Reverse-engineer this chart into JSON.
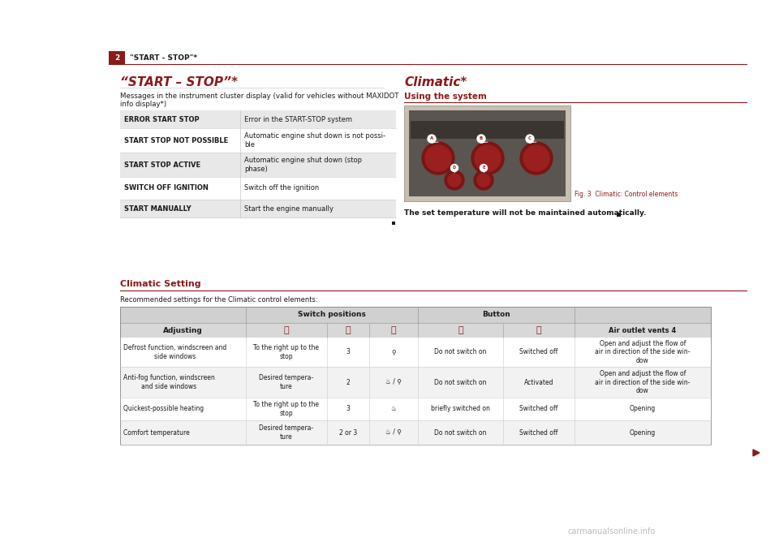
{
  "page_bg": "#ffffff",
  "header_bar_color": "#8B1A1A",
  "header_num": "2",
  "header_label": "\"START - STOP\"*",
  "left_section_title": "“START – STOP”*",
  "left_section_subtitle": "Messages in the instrument cluster display (valid for vehicles without MAXIDOT\ninfo display*)",
  "left_table_rows": [
    {
      "label": "ERROR START STOP",
      "desc": "Error in the START-STOP system"
    },
    {
      "label": "START STOP NOT POSSIBLE",
      "desc": "Automatic engine shut down is not possi-\nble"
    },
    {
      "label": "START STOP ACTIVE",
      "desc": "Automatic engine shut down (stop\nphase)"
    },
    {
      "label": "SWITCH OFF IGNITION",
      "desc": "Switch off the ignition"
    },
    {
      "label": "START MANUALLY",
      "desc": "Start the engine manually"
    }
  ],
  "right_section_title": "Climatic*",
  "right_subsection_title": "Using the system",
  "right_text": "The set temperature will not be maintained automatically.",
  "fig_caption": "Fig. 3  Climatic: Control elements",
  "fig_caption_color": "#8B1A1A",
  "bottom_section_title": "Climatic Setting",
  "bottom_section_subtitle": "Recommended settings for the Climatic control elements:",
  "table_rows": [
    [
      "Defrost function, windscreen and\nside windows",
      "To the right up to the\nstop",
      "3",
      "⚲",
      "Do not switch on",
      "Switched off",
      "Open and adjust the flow of\nair in direction of the side win-\ndow"
    ],
    [
      "Anti-fog function, windscreen\nand side windows",
      "Desired tempera-\nture",
      "2",
      "♨ / ⚲",
      "Do not switch on",
      "Activated",
      "Open and adjust the flow of\nair in direction of the side win-\ndow"
    ],
    [
      "Quickest-possible heating",
      "To the right up to the\nstop",
      "3",
      "♨",
      "briefly switched on",
      "Switched off",
      "Opening"
    ],
    [
      "Comfort temperature",
      "Desired tempera-\nture",
      "2 or 3",
      "♨ / ⚲",
      "Do not switch on",
      "Switched off",
      "Opening"
    ]
  ],
  "accent_color": "#8B1A1A",
  "text_color": "#1a1a1a",
  "light_gray": "#e8e8e8",
  "mid_gray": "#d0d0d0",
  "border_gray": "#aaaaaa",
  "watermark": "carmanualsonline.info"
}
